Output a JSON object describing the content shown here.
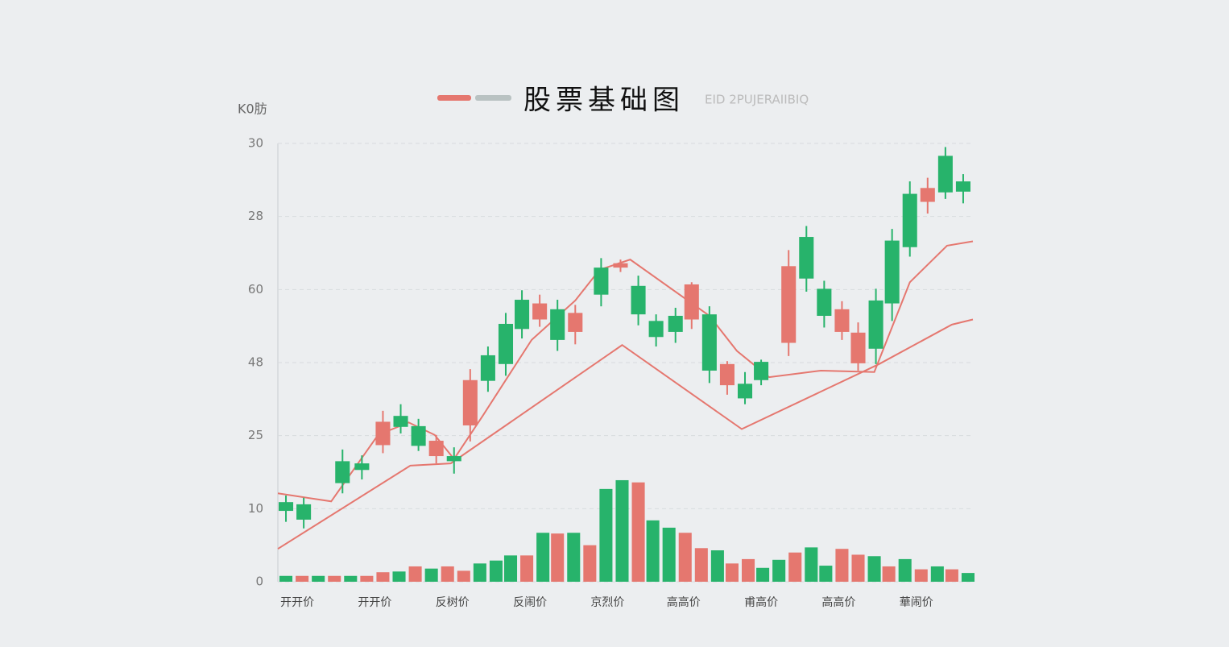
{
  "chart_data": {
    "type": "candlestick",
    "title": "股票基础图",
    "subtitle": "ΕΙD 2PUJERAIIBIQ",
    "ylabel": "K0肪",
    "xlim": [
      0,
      43
    ],
    "ylim": [
      0,
      60
    ],
    "yticks": [
      0,
      10,
      {
        "value": 20,
        "label": "25"
      },
      {
        "value": 30,
        "label": "48"
      },
      {
        "value": 40,
        "label": "60"
      },
      {
        "value": 50,
        "label": "28"
      },
      {
        "value": 60,
        "label": "30"
      }
    ],
    "xticks": [
      {
        "value": 1.2,
        "label": "开开价"
      },
      {
        "value": 6.0,
        "label": "开开价"
      },
      {
        "value": 10.8,
        "label": "反树价"
      },
      {
        "value": 15.6,
        "label": "反闹价"
      },
      {
        "value": 20.4,
        "label": "京烈价"
      },
      {
        "value": 25.1,
        "label": "高高价"
      },
      {
        "value": 29.9,
        "label": "甫高价"
      },
      {
        "value": 34.7,
        "label": "高高价"
      },
      {
        "value": 39.5,
        "label": "華闹价"
      }
    ],
    "grid": true,
    "up_color": "#27b36b",
    "down_color": "#e5776f",
    "candles": {
      "x": [
        0.5,
        1.6,
        4.0,
        5.2,
        6.5,
        7.6,
        8.7,
        9.8,
        10.9,
        11.9,
        13.0,
        14.1,
        15.1,
        16.2,
        17.3,
        18.4,
        20.0,
        21.2,
        22.3,
        23.4,
        24.6,
        25.6,
        26.7,
        27.8,
        28.9,
        29.9,
        31.6,
        32.7,
        33.8,
        34.9,
        35.9,
        37.0,
        38.0,
        39.1,
        40.2,
        41.3,
        42.4
      ],
      "open": [
        9.7,
        8.5,
        13.5,
        15.3,
        21.9,
        21.2,
        18.6,
        19.3,
        16.5,
        27.6,
        27.5,
        29.8,
        34.6,
        38.1,
        33.1,
        36.8,
        39.3,
        43.6,
        36.6,
        33.5,
        34.2,
        40.7,
        28.9,
        29.8,
        25.1,
        27.6,
        43.2,
        41.5,
        36.4,
        37.3,
        34.1,
        31.9,
        38.1,
        45.8,
        53.9,
        53.3,
        53.4
      ],
      "close": [
        10.9,
        10.6,
        16.5,
        16.2,
        18.7,
        22.7,
        21.3,
        17.2,
        17.2,
        21.4,
        31.0,
        35.3,
        38.6,
        35.9,
        37.3,
        34.2,
        43.0,
        43.0,
        40.5,
        35.7,
        36.4,
        35.9,
        36.6,
        26.9,
        27.1,
        30.1,
        32.7,
        47.2,
        40.1,
        34.2,
        29.9,
        38.5,
        46.7,
        53.1,
        52.0,
        58.3,
        54.8
      ],
      "high": [
        11.8,
        11.5,
        18.1,
        17.3,
        23.4,
        24.3,
        22.3,
        20.1,
        18.4,
        29.1,
        32.2,
        36.8,
        39.9,
        39.3,
        38.6,
        37.9,
        44.3,
        44.1,
        41.9,
        36.6,
        37.5,
        41.0,
        37.7,
        30.2,
        28.7,
        30.4,
        45.4,
        48.7,
        41.2,
        38.4,
        35.5,
        40.1,
        48.3,
        54.8,
        55.3,
        59.5,
        55.8
      ],
      "low": [
        8.2,
        7.3,
        12.1,
        14.0,
        17.6,
        20.3,
        17.9,
        16.2,
        14.8,
        19.2,
        26.0,
        28.2,
        33.3,
        34.9,
        31.6,
        32.5,
        37.7,
        42.4,
        35.1,
        32.2,
        32.7,
        34.6,
        27.2,
        25.6,
        24.3,
        26.9,
        30.9,
        39.7,
        34.8,
        33.1,
        28.9,
        29.8,
        35.7,
        44.5,
        50.4,
        52.4,
        51.8
      ]
    },
    "lines": [
      {
        "color": "#e5776f",
        "x": [
          0,
          3.3,
          6.2,
          8.1,
          9.7,
          10.9,
          12.7,
          15.7,
          18.4,
          19.9,
          21.8,
          26.7,
          28.4,
          30.4,
          33.6,
          36.9,
          39.1,
          41.4,
          43.0
        ],
        "values": [
          12.1,
          11.0,
          20.1,
          21.8,
          20.1,
          16.8,
          22.8,
          33.1,
          38.5,
          42.7,
          44.1,
          36.4,
          31.6,
          28.0,
          28.9,
          28.7,
          41.0,
          46.0,
          46.6
        ]
      },
      {
        "color": "#e5776f",
        "x": [
          0,
          8.2,
          10.7,
          21.3,
          28.7,
          37.2,
          41.7,
          43.0
        ],
        "values": [
          4.5,
          15.9,
          16.2,
          32.4,
          20.9,
          29.8,
          35.2,
          35.9
        ]
      }
    ],
    "volume": [
      {
        "color": "#27b36b",
        "x": [
          0.5,
          2.5,
          4.5,
          7.5,
          9.5,
          12.5,
          13.5,
          14.4,
          16.4,
          18.3,
          20.3,
          21.3,
          23.2,
          24.2,
          27.2,
          30.0,
          31.0,
          33.0,
          33.9,
          36.9,
          38.8,
          40.8,
          42.7
        ],
        "values": [
          0.8,
          0.8,
          0.8,
          1.4,
          1.8,
          2.5,
          2.9,
          3.6,
          6.7,
          6.7,
          12.7,
          13.9,
          8.4,
          7.4,
          4.3,
          1.9,
          3.0,
          4.7,
          2.2,
          3.5,
          3.1,
          2.1,
          1.2
        ]
      },
      {
        "color": "#e5776f",
        "x": [
          1.5,
          3.5,
          5.5,
          6.5,
          8.5,
          10.5,
          11.5,
          15.4,
          17.3,
          19.3,
          22.3,
          25.2,
          26.2,
          28.1,
          29.1,
          32.0,
          34.9,
          35.9,
          37.8,
          39.8,
          41.7
        ],
        "values": [
          0.8,
          0.8,
          0.8,
          1.3,
          2.1,
          2.1,
          1.5,
          3.6,
          6.6,
          5.0,
          13.6,
          6.7,
          4.6,
          2.5,
          3.1,
          4.0,
          4.5,
          3.7,
          2.1,
          1.7,
          1.7
        ]
      }
    ]
  }
}
